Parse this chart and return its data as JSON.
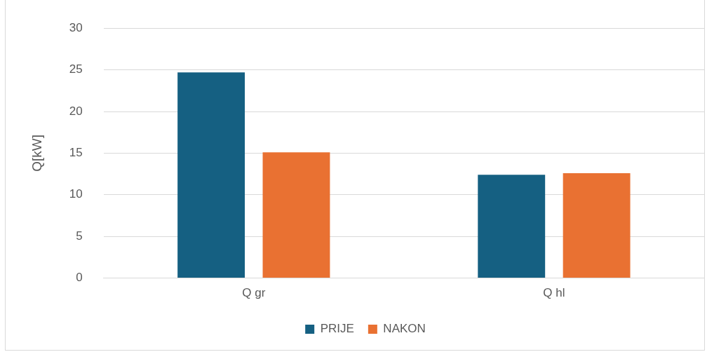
{
  "chart_data": {
    "type": "bar",
    "ylabel": "Q[kW]",
    "categories": [
      "Q gr",
      "Q hl"
    ],
    "series": [
      {
        "name": "PRIJE",
        "color": "#156082",
        "values": [
          24.7,
          12.4
        ]
      },
      {
        "name": "NAKON",
        "color": "#e97132",
        "values": [
          15.1,
          12.6
        ]
      }
    ],
    "ylim": [
      0,
      30
    ],
    "yticks": [
      0,
      5,
      10,
      15,
      20,
      25,
      30
    ],
    "grid": "y",
    "legend": "bottom"
  }
}
